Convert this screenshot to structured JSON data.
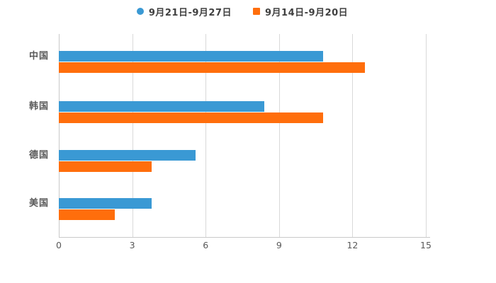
{
  "chart_data": {
    "type": "bar",
    "orientation": "horizontal",
    "title": "",
    "categories": [
      "中国",
      "韩国",
      "德国",
      "美国"
    ],
    "series": [
      {
        "name": "9月21日-9月27日",
        "color": "#3A99D4",
        "marker": "circle",
        "values": [
          10.8,
          8.4,
          5.6,
          3.8
        ]
      },
      {
        "name": "9月14日-9月20日",
        "color": "#FF6E0C",
        "marker": "square",
        "values": [
          12.5,
          10.8,
          3.8,
          2.3
        ]
      }
    ],
    "x_ticks": [
      0,
      3,
      6,
      9,
      12,
      15
    ],
    "xlim": [
      0,
      15
    ],
    "xlabel": "",
    "ylabel": "",
    "grid": true,
    "legend_position": "top-center"
  },
  "colors": {
    "background": "#ffffff",
    "gridline": "#d9d9d9",
    "axis_line": "#c9c9c9",
    "legend_text": "#404040",
    "axis_text": "#595959",
    "series_blue": "#3A99D4",
    "series_orange": "#FF6E0C"
  }
}
